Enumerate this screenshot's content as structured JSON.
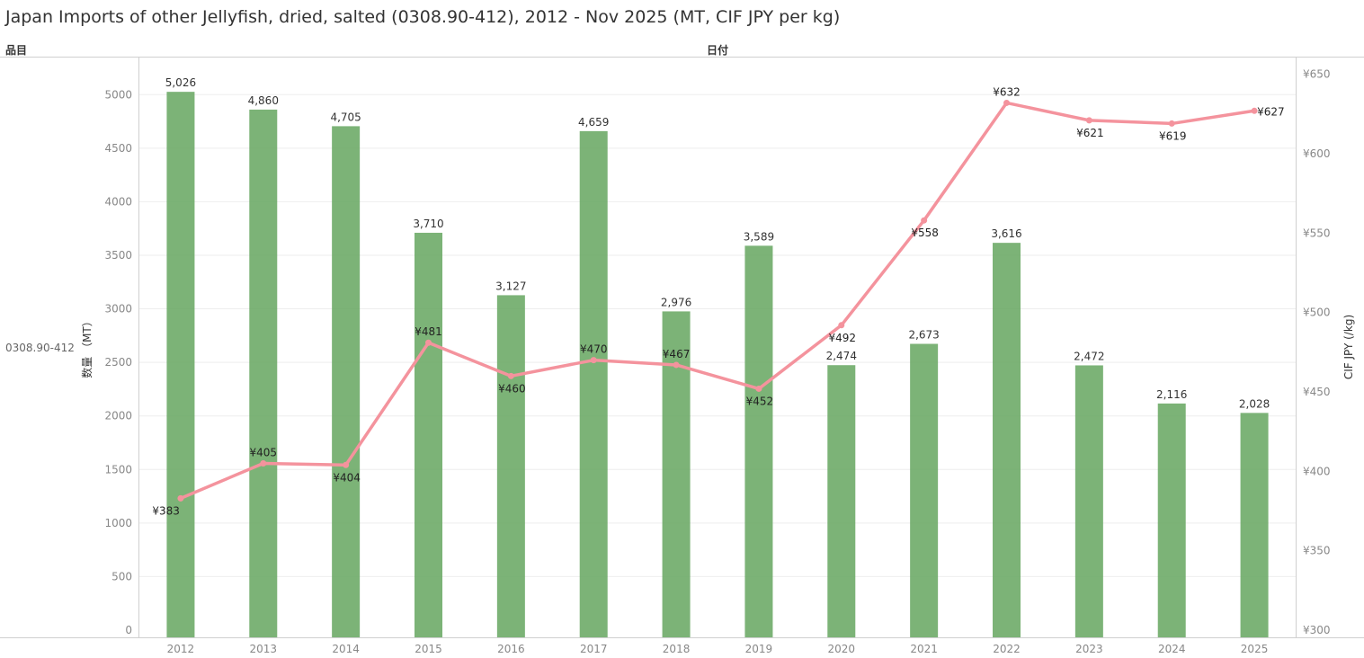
{
  "title": "Japan Imports of other Jellyfish, dried, salted (0308.90-412), 2012 - Nov 2025 (MT, CIF JPY per kg)",
  "header": {
    "left": "品目",
    "center": "日付"
  },
  "row_label": "0308.90-412",
  "colors": {
    "bar": "#6aa864",
    "line": "#f4939d",
    "grid": "#eeeeee",
    "axis": "#cccccc"
  },
  "chart_data": {
    "type": "bar",
    "categories": [
      "2012",
      "2013",
      "2014",
      "2015",
      "2016",
      "2017",
      "2018",
      "2019",
      "2020",
      "2021",
      "2022",
      "2023",
      "2024",
      "2025"
    ],
    "series": [
      {
        "type": "bar",
        "axis": "left",
        "values": [
          5026,
          4860,
          4705,
          3710,
          3127,
          4659,
          2976,
          3589,
          2474,
          2673,
          3616,
          2472,
          2116,
          2028
        ],
        "labels": [
          "5,026",
          "4,860",
          "4,705",
          "3,710",
          "3,127",
          "4,659",
          "2,976",
          "3,589",
          "2,474",
          "2,673",
          "3,616",
          "2,472",
          "2,116",
          "2,028"
        ]
      },
      {
        "type": "line",
        "axis": "right",
        "values": [
          383,
          405,
          404,
          481,
          460,
          470,
          467,
          452,
          492,
          558,
          632,
          621,
          619,
          627
        ],
        "labels": [
          "¥383",
          "¥405",
          "¥404",
          "¥481",
          "¥460",
          "¥470",
          "¥467",
          "¥452",
          "¥492",
          "¥558",
          "¥632",
          "¥621",
          "¥619",
          "¥627"
        ]
      }
    ],
    "ylabel": "数量 （MT）",
    "y2label": "CIF JPY (/kg)",
    "ylim": [
      0,
      5300
    ],
    "yticks": [
      0,
      500,
      1000,
      1500,
      2000,
      2500,
      3000,
      3500,
      4000,
      4500,
      5000
    ],
    "y2lim": [
      300,
      655
    ],
    "y2ticks": [
      300,
      350,
      400,
      450,
      500,
      550,
      600,
      650
    ],
    "y2tick_labels": [
      "¥300",
      "¥350",
      "¥400",
      "¥450",
      "¥500",
      "¥550",
      "¥600",
      "¥650"
    ],
    "grid": true
  }
}
